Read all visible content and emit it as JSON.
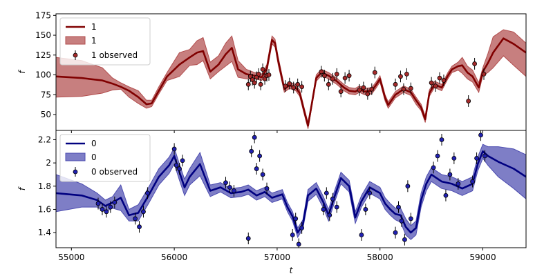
{
  "chart_data": [
    {
      "type": "line",
      "panel": "top",
      "ylabel": "f",
      "xlabel": "",
      "xlim": [
        54850,
        59420
      ],
      "ylim": [
        30,
        177
      ],
      "yticks": [
        50,
        75,
        100,
        125,
        150,
        175
      ],
      "xticks": [
        55000,
        56000,
        57000,
        58000,
        59000
      ],
      "show_x_tick_labels": false,
      "grid": false,
      "legend": {
        "placement": "top-left",
        "entries": [
          "1",
          "1",
          "1 observed"
        ]
      },
      "colors": {
        "line": "#800000",
        "band": "#b24d4d",
        "marker": "#a52a2a"
      },
      "series": [
        {
          "name": "1",
          "kind": "model-mean",
          "x": [
            54850,
            55100,
            55300,
            55400,
            55480,
            55560,
            55650,
            55730,
            55780,
            55850,
            55930,
            56050,
            56150,
            56220,
            56280,
            56350,
            56430,
            56500,
            56560,
            56620,
            56700,
            56780,
            56850,
            56900,
            56950,
            56980,
            57010,
            57070,
            57120,
            57180,
            57220,
            57260,
            57300,
            57330,
            57380,
            57430,
            57500,
            57580,
            57650,
            57700,
            57760,
            57800,
            57850,
            57920,
            57960,
            58000,
            58050,
            58080,
            58150,
            58230,
            58300,
            58350,
            58400,
            58440,
            58480,
            58530,
            58600,
            58660,
            58700,
            58760,
            58800,
            58850,
            58900,
            58960,
            59000,
            59050,
            59100,
            59200,
            59300,
            59420
          ],
          "y": [
            98,
            96,
            93,
            89,
            85,
            80,
            72,
            63,
            64,
            80,
            98,
            113,
            122,
            128,
            130,
            104,
            113,
            126,
            134,
            107,
            101,
            99,
            97,
            108,
            144,
            140,
            118,
            82,
            87,
            84,
            77,
            56,
            36,
            58,
            96,
            103,
            99,
            92,
            84,
            80,
            79,
            82,
            79,
            80,
            87,
            95,
            71,
            62,
            75,
            82,
            78,
            68,
            59,
            44,
            77,
            88,
            84,
            99,
            107,
            111,
            112,
            103,
            98,
            84,
            104,
            115,
            128,
            146,
            139,
            128
          ]
        },
        {
          "name": "1",
          "kind": "uncertainty-band",
          "x": [
            54850,
            55100,
            55300,
            55400,
            55480,
            55560,
            55650,
            55730,
            55780,
            55850,
            55930,
            56050,
            56150,
            56220,
            56280,
            56350,
            56430,
            56500,
            56560,
            56620,
            56700,
            56780,
            56850,
            56900,
            56950,
            56980,
            57010,
            57070,
            57120,
            57180,
            57220,
            57260,
            57300,
            57330,
            57380,
            57430,
            57500,
            57580,
            57650,
            57700,
            57760,
            57800,
            57850,
            57920,
            57960,
            58000,
            58050,
            58080,
            58150,
            58230,
            58300,
            58350,
            58400,
            58440,
            58480,
            58530,
            58600,
            58660,
            58700,
            58760,
            58800,
            58850,
            58900,
            58960,
            59000,
            59050,
            59100,
            59200,
            59300,
            59420
          ],
          "lower": [
            72,
            73,
            77,
            81,
            82,
            72,
            64,
            58,
            60,
            76,
            93,
            98,
            112,
            113,
            118,
            95,
            104,
            111,
            117,
            97,
            95,
            95,
            93,
            103,
            139,
            135,
            113,
            78,
            83,
            80,
            73,
            52,
            32,
            54,
            92,
            99,
            95,
            88,
            80,
            76,
            75,
            78,
            75,
            76,
            83,
            91,
            67,
            58,
            71,
            78,
            74,
            63,
            55,
            40,
            73,
            84,
            80,
            95,
            103,
            106,
            102,
            95,
            91,
            78,
            99,
            103,
            109,
            124,
            112,
            98
          ],
          "upper": [
            122,
            118,
            109,
            96,
            90,
            85,
            80,
            68,
            68,
            85,
            103,
            128,
            132,
            143,
            147,
            116,
            124,
            140,
            149,
            118,
            107,
            103,
            101,
            113,
            149,
            145,
            123,
            86,
            91,
            88,
            81,
            60,
            40,
            62,
            100,
            107,
            103,
            96,
            88,
            84,
            83,
            86,
            83,
            84,
            91,
            99,
            75,
            66,
            79,
            86,
            82,
            72,
            63,
            48,
            81,
            92,
            88,
            103,
            111,
            116,
            122,
            111,
            106,
            90,
            109,
            127,
            148,
            157,
            154,
            140
          ]
        },
        {
          "name": "1 observed",
          "kind": "observations",
          "x": [
            56720,
            56740,
            56760,
            56780,
            56800,
            56820,
            56840,
            56860,
            56880,
            56900,
            56920,
            57080,
            57120,
            57160,
            57200,
            57240,
            57430,
            57460,
            57500,
            57540,
            57580,
            57620,
            57660,
            57700,
            57800,
            57840,
            57880,
            57920,
            57950,
            58150,
            58200,
            58230,
            58260,
            58300,
            58500,
            58540,
            58580,
            58620,
            58860,
            58920,
            59010
          ],
          "y": [
            88,
            98,
            94,
            90,
            97,
            101,
            88,
            107,
            95,
            99,
            100,
            86,
            89,
            84,
            88,
            85,
            104,
            99,
            88,
            95,
            101,
            79,
            96,
            99,
            81,
            84,
            76,
            82,
            103,
            88,
            98,
            82,
            101,
            83,
            90,
            86,
            96,
            93,
            67,
            114,
            101
          ]
        }
      ]
    },
    {
      "type": "line",
      "panel": "bottom",
      "ylabel": "f",
      "xlabel": "t",
      "xlim": [
        54850,
        59420
      ],
      "ylim": [
        1.27,
        2.28
      ],
      "yticks": [
        1.4,
        1.6,
        1.8,
        2.0,
        2.2
      ],
      "xticks": [
        55000,
        56000,
        57000,
        58000,
        59000
      ],
      "show_x_tick_labels": true,
      "grid": false,
      "legend": {
        "placement": "top-left",
        "entries": [
          "0",
          "0",
          "0 observed"
        ]
      },
      "colors": {
        "line": "#000080",
        "band": "#4c4cb0",
        "marker": "#2020b0"
      },
      "series": [
        {
          "name": "0",
          "kind": "model-mean",
          "x": [
            54850,
            55100,
            55250,
            55330,
            55400,
            55480,
            55560,
            55650,
            55750,
            55850,
            55950,
            56000,
            56050,
            56100,
            56150,
            56250,
            56350,
            56450,
            56550,
            56650,
            56720,
            56800,
            56880,
            56950,
            57050,
            57100,
            57150,
            57200,
            57250,
            57300,
            57380,
            57450,
            57500,
            57550,
            57620,
            57700,
            57760,
            57820,
            57900,
            58000,
            58050,
            58100,
            58150,
            58200,
            58250,
            58300,
            58350,
            58400,
            58450,
            58500,
            58600,
            58700,
            58800,
            58900,
            58950,
            59000,
            59050,
            59150,
            59300,
            59420
          ],
          "y": [
            1.74,
            1.72,
            1.68,
            1.63,
            1.66,
            1.7,
            1.55,
            1.57,
            1.72,
            1.88,
            1.98,
            2.06,
            1.92,
            1.79,
            1.88,
            1.99,
            1.76,
            1.79,
            1.74,
            1.75,
            1.77,
            1.72,
            1.75,
            1.7,
            1.73,
            1.62,
            1.54,
            1.4,
            1.47,
            1.72,
            1.78,
            1.66,
            1.55,
            1.69,
            1.87,
            1.8,
            1.53,
            1.67,
            1.79,
            1.74,
            1.65,
            1.6,
            1.56,
            1.55,
            1.45,
            1.4,
            1.44,
            1.68,
            1.82,
            1.9,
            1.84,
            1.82,
            1.78,
            1.82,
            1.99,
            2.1,
            2.06,
            2.01,
            1.95,
            1.88
          ]
        },
        {
          "name": "0",
          "kind": "uncertainty-band",
          "x": [
            54850,
            55100,
            55250,
            55330,
            55400,
            55480,
            55560,
            55650,
            55750,
            55850,
            55950,
            56000,
            56050,
            56100,
            56150,
            56250,
            56350,
            56450,
            56550,
            56650,
            56720,
            56800,
            56880,
            56950,
            57050,
            57100,
            57150,
            57200,
            57250,
            57300,
            57380,
            57450,
            57500,
            57550,
            57620,
            57700,
            57760,
            57820,
            57900,
            58000,
            58050,
            58100,
            58150,
            58200,
            58250,
            58300,
            58350,
            58400,
            58450,
            58500,
            58600,
            58700,
            58800,
            58900,
            58950,
            59000,
            59050,
            59150,
            59300,
            59420
          ],
          "lower": [
            1.58,
            1.62,
            1.62,
            1.58,
            1.61,
            1.59,
            1.5,
            1.5,
            1.65,
            1.81,
            1.91,
            1.99,
            1.85,
            1.72,
            1.81,
            1.89,
            1.71,
            1.75,
            1.7,
            1.71,
            1.73,
            1.68,
            1.71,
            1.66,
            1.69,
            1.58,
            1.5,
            1.36,
            1.43,
            1.67,
            1.73,
            1.61,
            1.5,
            1.64,
            1.82,
            1.75,
            1.48,
            1.62,
            1.74,
            1.69,
            1.6,
            1.55,
            1.51,
            1.49,
            1.38,
            1.34,
            1.38,
            1.62,
            1.76,
            1.84,
            1.78,
            1.76,
            1.72,
            1.76,
            1.93,
            2.04,
            1.98,
            1.88,
            1.78,
            1.69
          ],
          "upper": [
            1.9,
            1.82,
            1.74,
            1.68,
            1.71,
            1.81,
            1.6,
            1.64,
            1.79,
            1.95,
            2.05,
            2.13,
            1.99,
            1.86,
            1.95,
            2.09,
            1.81,
            1.83,
            1.78,
            1.79,
            1.81,
            1.76,
            1.79,
            1.74,
            1.77,
            1.66,
            1.58,
            1.44,
            1.51,
            1.77,
            1.83,
            1.71,
            1.6,
            1.74,
            1.92,
            1.85,
            1.58,
            1.72,
            1.84,
            1.79,
            1.7,
            1.65,
            1.61,
            1.61,
            1.52,
            1.46,
            1.5,
            1.74,
            1.88,
            1.96,
            1.9,
            1.88,
            1.84,
            1.88,
            2.05,
            2.16,
            2.14,
            2.14,
            2.12,
            2.07
          ]
        },
        {
          "name": "0 observed",
          "kind": "observations",
          "x": [
            55260,
            55300,
            55340,
            55380,
            55420,
            55620,
            55660,
            55700,
            55740,
            56000,
            56020,
            56050,
            56080,
            56500,
            56540,
            56580,
            56720,
            56750,
            56780,
            56800,
            56830,
            56860,
            56900,
            57150,
            57180,
            57210,
            57240,
            57450,
            57480,
            57510,
            57540,
            57580,
            57820,
            57860,
            57900,
            58150,
            58180,
            58210,
            58240,
            58270,
            58300,
            58520,
            58560,
            58600,
            58640,
            58680,
            58720,
            58760,
            58900,
            58940,
            58980,
            59020
          ],
          "y": [
            1.65,
            1.6,
            1.58,
            1.62,
            1.66,
            1.52,
            1.45,
            1.58,
            1.74,
            2.12,
            1.98,
            1.95,
            2.02,
            1.83,
            1.79,
            1.76,
            1.35,
            2.1,
            2.22,
            1.95,
            2.06,
            1.9,
            1.78,
            1.38,
            1.52,
            1.3,
            1.44,
            1.6,
            1.74,
            1.55,
            1.69,
            1.62,
            1.38,
            1.6,
            1.74,
            1.4,
            1.62,
            1.5,
            1.34,
            1.8,
            1.52,
            1.96,
            2.06,
            2.2,
            1.72,
            1.9,
            2.04,
            1.82,
            1.84,
            2.04,
            2.24,
            2.06
          ]
        }
      ]
    }
  ]
}
